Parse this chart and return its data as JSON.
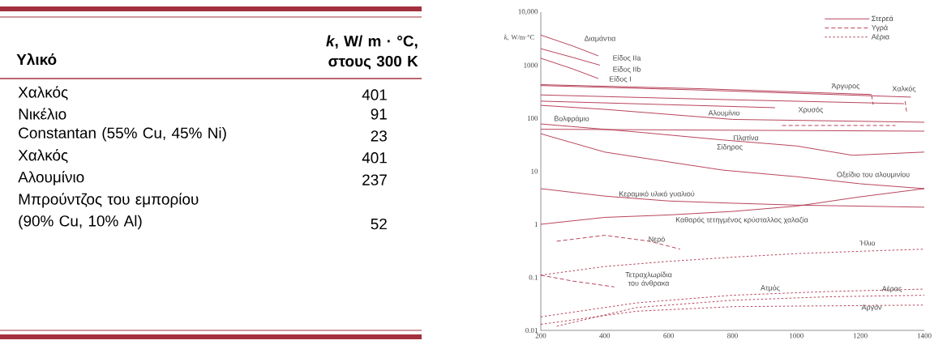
{
  "chart_data": [
    {
      "type": "other",
      "xlabel": "Υλικό",
      "ylabel": "*k*, W/ m · °C, στους 300 K",
      "categories": [
        "Χαλκός",
        "Νικέλιο",
        "Constantan (55% Cu, 45% Ni)",
        "Χαλκός",
        "Αλουμίνιο",
        "Μπρούντζος του εμπορίου (90% Cu, 10% Al)"
      ],
      "values": [
        401,
        91,
        23,
        401,
        237,
        52
      ],
      "data_labels": true
    },
    {
      "type": "line",
      "ylabel": "*k*, W/m·°C",
      "log": true,
      "marker": "none",
      "xlim": [
        200,
        1400
      ],
      "xticks": [
        200,
        400,
        600,
        800,
        1000,
        1200,
        1400
      ],
      "ylim": [
        0.01,
        10000
      ],
      "yticks": [
        0.01,
        0.1,
        1,
        10,
        100,
        1000,
        {
          "value": 10000,
          "label": "10,000"
        }
      ],
      "series": [
        {
          "color": "#b0304a",
          "line_style": "solid",
          "x": [
            200,
            300,
            380
          ],
          "values": [
            3700,
            2300,
            1500
          ]
        },
        {
          "color": "#b0304a",
          "line_style": "solid",
          "x": [
            200,
            300,
            385
          ],
          "values": [
            2050,
            1400,
            1000
          ]
        },
        {
          "color": "#b0304a",
          "line_style": "solid",
          "x": [
            200,
            300,
            380
          ],
          "values": [
            1350,
            850,
            560
          ]
        },
        {
          "color": "#b0304a",
          "line_style": "solid",
          "x": [
            200,
            700,
            1235
          ],
          "values": [
            430,
            360,
            280
          ]
        },
        {
          "color": "#b0304a",
          "line_style": "solid",
          "x": [
            200,
            700,
            1358
          ],
          "values": [
            413,
            340,
            250
          ]
        },
        {
          "color": "#b0304a",
          "line_style": "solid",
          "x": [
            200,
            700,
            1336
          ],
          "values": [
            275,
            230,
            188
          ]
        },
        {
          "color": "#b0304a",
          "line_style": "solid",
          "x": [
            200,
            600,
            933
          ],
          "values": [
            210,
            180,
            158
          ]
        },
        {
          "color": "#b0304a",
          "line_style": "solid",
          "x": [
            200,
            400,
            800,
            1400
          ],
          "values": [
            175,
            147,
            95,
            84
          ]
        },
        {
          "color": "#b0304a",
          "line_style": "solid",
          "x": [
            200,
            1400
          ],
          "values": [
            62,
            57
          ]
        },
        {
          "color": "#b0304a",
          "line_style": "solid",
          "x": [
            200,
            500,
            768,
            1000,
            1175,
            1400
          ],
          "values": [
            78,
            55,
            39,
            30,
            20,
            23
          ]
        },
        {
          "color": "#b0304a",
          "line_style": "solid",
          "x": [
            200,
            400,
            600,
            770,
            1000,
            1200,
            1400
          ],
          "values": [
            51,
            23,
            15,
            10.5,
            7.9,
            5.8,
            4.7
          ]
        },
        {
          "color": "#b0304a",
          "line_style": "solid",
          "x": [
            200,
            400,
            600,
            800,
            1000,
            1200,
            1400
          ],
          "values": [
            4.7,
            3.4,
            2.75,
            2.5,
            2.3,
            2.2,
            2.1
          ]
        },
        {
          "color": "#b0304a",
          "line_style": "solid",
          "x": [
            200,
            400,
            600,
            800,
            1000,
            1200,
            1400
          ],
          "values": [
            1.0,
            1.35,
            1.5,
            1.75,
            2.2,
            3.3,
            4.7
          ]
        },
        {
          "color": "#b0304a",
          "line_style": "dashed",
          "x": [
            955,
            1310
          ],
          "values": [
            73,
            73
          ]
        },
        {
          "color": "#b0304a",
          "line_style": "dashed",
          "x": [
            1235,
            1240
          ],
          "values": [
            270,
            180
          ]
        },
        {
          "color": "#b0304a",
          "line_style": "dashed",
          "x": [
            1340,
            1345
          ],
          "values": [
            210,
            125
          ]
        },
        {
          "color": "#b0304a",
          "line_style": "dashed",
          "x": [
            250,
            400,
            540,
            636
          ],
          "values": [
            0.48,
            0.62,
            0.48,
            0.34
          ]
        },
        {
          "color": "#b0304a",
          "line_style": "dashed",
          "x": [
            200,
            300,
            430
          ],
          "values": [
            0.11,
            0.085,
            0.066
          ]
        },
        {
          "color": "#b0304a",
          "line_style": "dotted",
          "x": [
            200,
            400,
            600,
            800,
            1000,
            1200,
            1400
          ],
          "values": [
            0.11,
            0.16,
            0.2,
            0.24,
            0.28,
            0.31,
            0.34
          ]
        },
        {
          "color": "#b0304a",
          "line_style": "dotted",
          "x": [
            200,
            500,
            800,
            1100,
            1400
          ],
          "values": [
            0.018,
            0.033,
            0.046,
            0.054,
            0.06
          ]
        },
        {
          "color": "#b0304a",
          "line_style": "dotted",
          "x": [
            250,
            500,
            800,
            1100,
            1400
          ],
          "values": [
            0.012,
            0.027,
            0.037,
            0.043,
            0.046
          ]
        },
        {
          "color": "#b0304a",
          "line_style": "dotted",
          "x": [
            200,
            500,
            800,
            1100,
            1400
          ],
          "values": [
            0.013,
            0.023,
            0.028,
            0.029,
            0.03
          ]
        }
      ],
      "annotations": [
        "Στερεά",
        "Υγρά",
        "Αέρια",
        "Διαμάντια",
        "Είδος IIa",
        "Είδος IIb",
        "Είδος I",
        "Άργυρος",
        "Χαλκός",
        "Αλουμίνιο",
        "Χρυσός",
        "Βολφράμιο",
        "Πλατίνα",
        "Σίδηρος",
        "Οξείδιο του αλουμινίου",
        "Κεραμικό υλικό γυαλιού",
        "Καθαρός τετηγμένος κρύσταλλος χαλαζία",
        "Νερό",
        "Ήλιο",
        "Τετραχλωρίδια του άνθρακα",
        "Ατμός",
        "Αέρας",
        "Αργόν"
      ]
    }
  ]
}
